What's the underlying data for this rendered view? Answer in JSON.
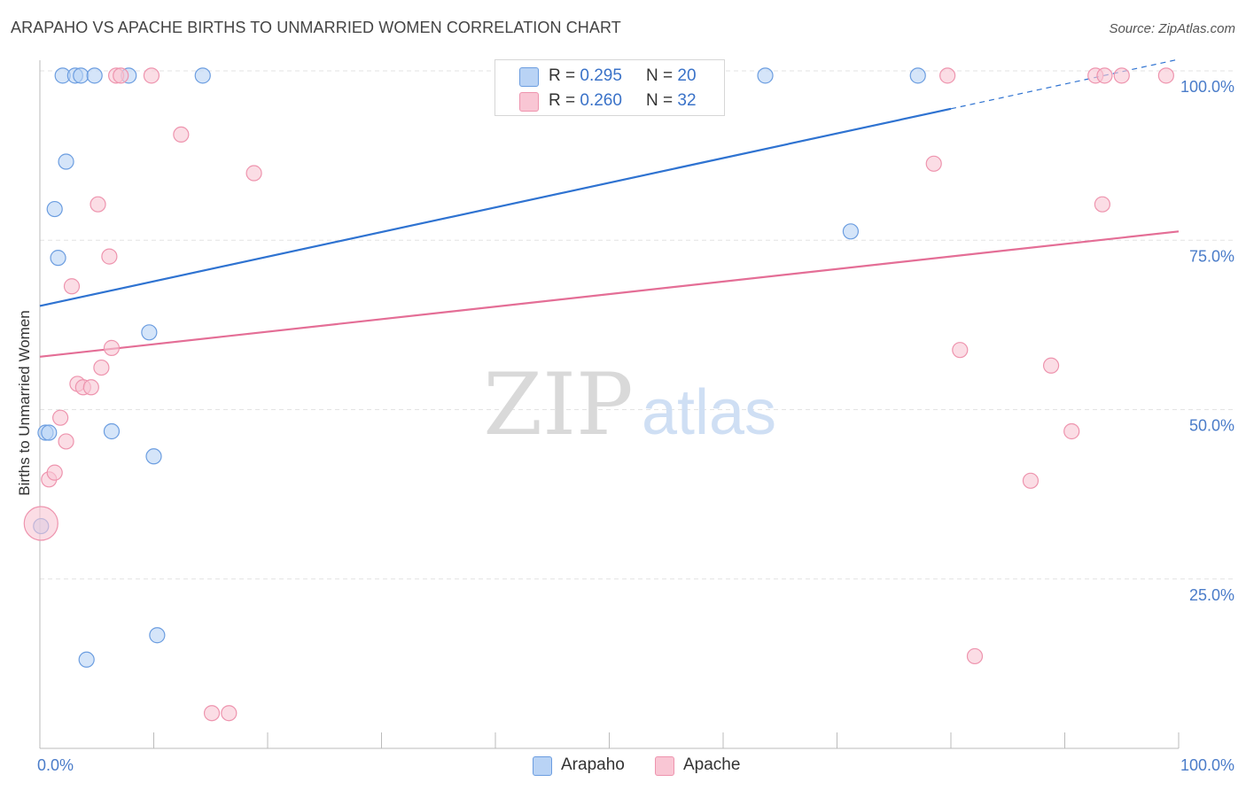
{
  "header": {
    "title": "ARAPAHO VS APACHE BIRTHS TO UNMARRIED WOMEN CORRELATION CHART",
    "source": "Source: ZipAtlas.com"
  },
  "watermark": {
    "zip": "ZIP",
    "atlas": "atlas"
  },
  "legend": {
    "arapaho": {
      "r_label": "R = ",
      "r_value": "0.295",
      "n_label": "N = ",
      "n_value": "20"
    },
    "apache": {
      "r_label": "R = ",
      "r_value": "0.260",
      "n_label": "N = ",
      "n_value": "32"
    }
  },
  "bottom_legend": {
    "arapaho": "Arapaho",
    "apache": "Apache"
  },
  "colors": {
    "arapaho_fill": "#b9d3f5",
    "arapaho_stroke": "#6b9de0",
    "arapaho_line": "#2f73d1",
    "apache_fill": "#f9c6d4",
    "apache_stroke": "#ee94ae",
    "apache_line": "#e46e96",
    "tick_text": "#4a7cc9",
    "grid": "#e3e3e3"
  },
  "chart_data": {
    "type": "scatter",
    "title": "ARAPAHO VS APACHE BIRTHS TO UNMARRIED WOMEN CORRELATION CHART",
    "xlabel": "",
    "ylabel": "Births to Unmarried Women",
    "xlim": [
      0,
      100
    ],
    "ylim": [
      0,
      100
    ],
    "x_tick_labels": [
      "0.0%",
      "100.0%"
    ],
    "y_tick_labels": [
      "25.0%",
      "50.0%",
      "75.0%",
      "100.0%"
    ],
    "y_ticks": [
      25,
      50,
      75,
      100
    ],
    "grid": true,
    "series": [
      {
        "name": "Arapaho",
        "points": [
          [
            0.1,
            32.8
          ],
          [
            0.5,
            46.6
          ],
          [
            0.8,
            46.6
          ],
          [
            1.3,
            79.6
          ],
          [
            1.6,
            72.4
          ],
          [
            2.0,
            99.3
          ],
          [
            2.3,
            86.6
          ],
          [
            3.1,
            99.3
          ],
          [
            3.6,
            99.3
          ],
          [
            4.1,
            13.1
          ],
          [
            4.8,
            99.3
          ],
          [
            6.3,
            46.8
          ],
          [
            7.8,
            99.3
          ],
          [
            9.6,
            61.4
          ],
          [
            10.0,
            43.1
          ],
          [
            10.3,
            16.7
          ],
          [
            14.3,
            99.3
          ],
          [
            63.7,
            99.3
          ],
          [
            71.2,
            76.3
          ],
          [
            77.1,
            99.3
          ]
        ],
        "trend": {
          "x0": 0,
          "y0": 65.3,
          "x1": 80,
          "y1": 94.4,
          "dash_to_x": 100,
          "dash_to_y": 101.7
        }
      },
      {
        "name": "Apache",
        "points": [
          [
            0.1,
            33.2
          ],
          [
            0.8,
            39.7
          ],
          [
            1.3,
            40.7
          ],
          [
            1.8,
            48.8
          ],
          [
            2.3,
            45.3
          ],
          [
            2.8,
            68.2
          ],
          [
            3.3,
            53.8
          ],
          [
            3.8,
            53.3
          ],
          [
            4.5,
            53.3
          ],
          [
            5.1,
            80.3
          ],
          [
            5.4,
            56.2
          ],
          [
            6.1,
            72.6
          ],
          [
            6.3,
            59.1
          ],
          [
            6.7,
            99.3
          ],
          [
            7.1,
            99.3
          ],
          [
            9.8,
            99.3
          ],
          [
            12.4,
            90.6
          ],
          [
            15.1,
            5.2
          ],
          [
            16.6,
            5.2
          ],
          [
            18.8,
            84.9
          ],
          [
            78.5,
            86.3
          ],
          [
            79.7,
            99.3
          ],
          [
            80.8,
            58.8
          ],
          [
            82.1,
            13.6
          ],
          [
            87.0,
            39.5
          ],
          [
            88.8,
            56.5
          ],
          [
            90.6,
            46.8
          ],
          [
            92.7,
            99.3
          ],
          [
            93.3,
            80.3
          ],
          [
            93.5,
            99.3
          ],
          [
            95.0,
            99.3
          ],
          [
            98.9,
            99.3
          ]
        ],
        "trend": {
          "x0": 0,
          "y0": 57.8,
          "x1": 100,
          "y1": 76.3
        }
      }
    ]
  }
}
